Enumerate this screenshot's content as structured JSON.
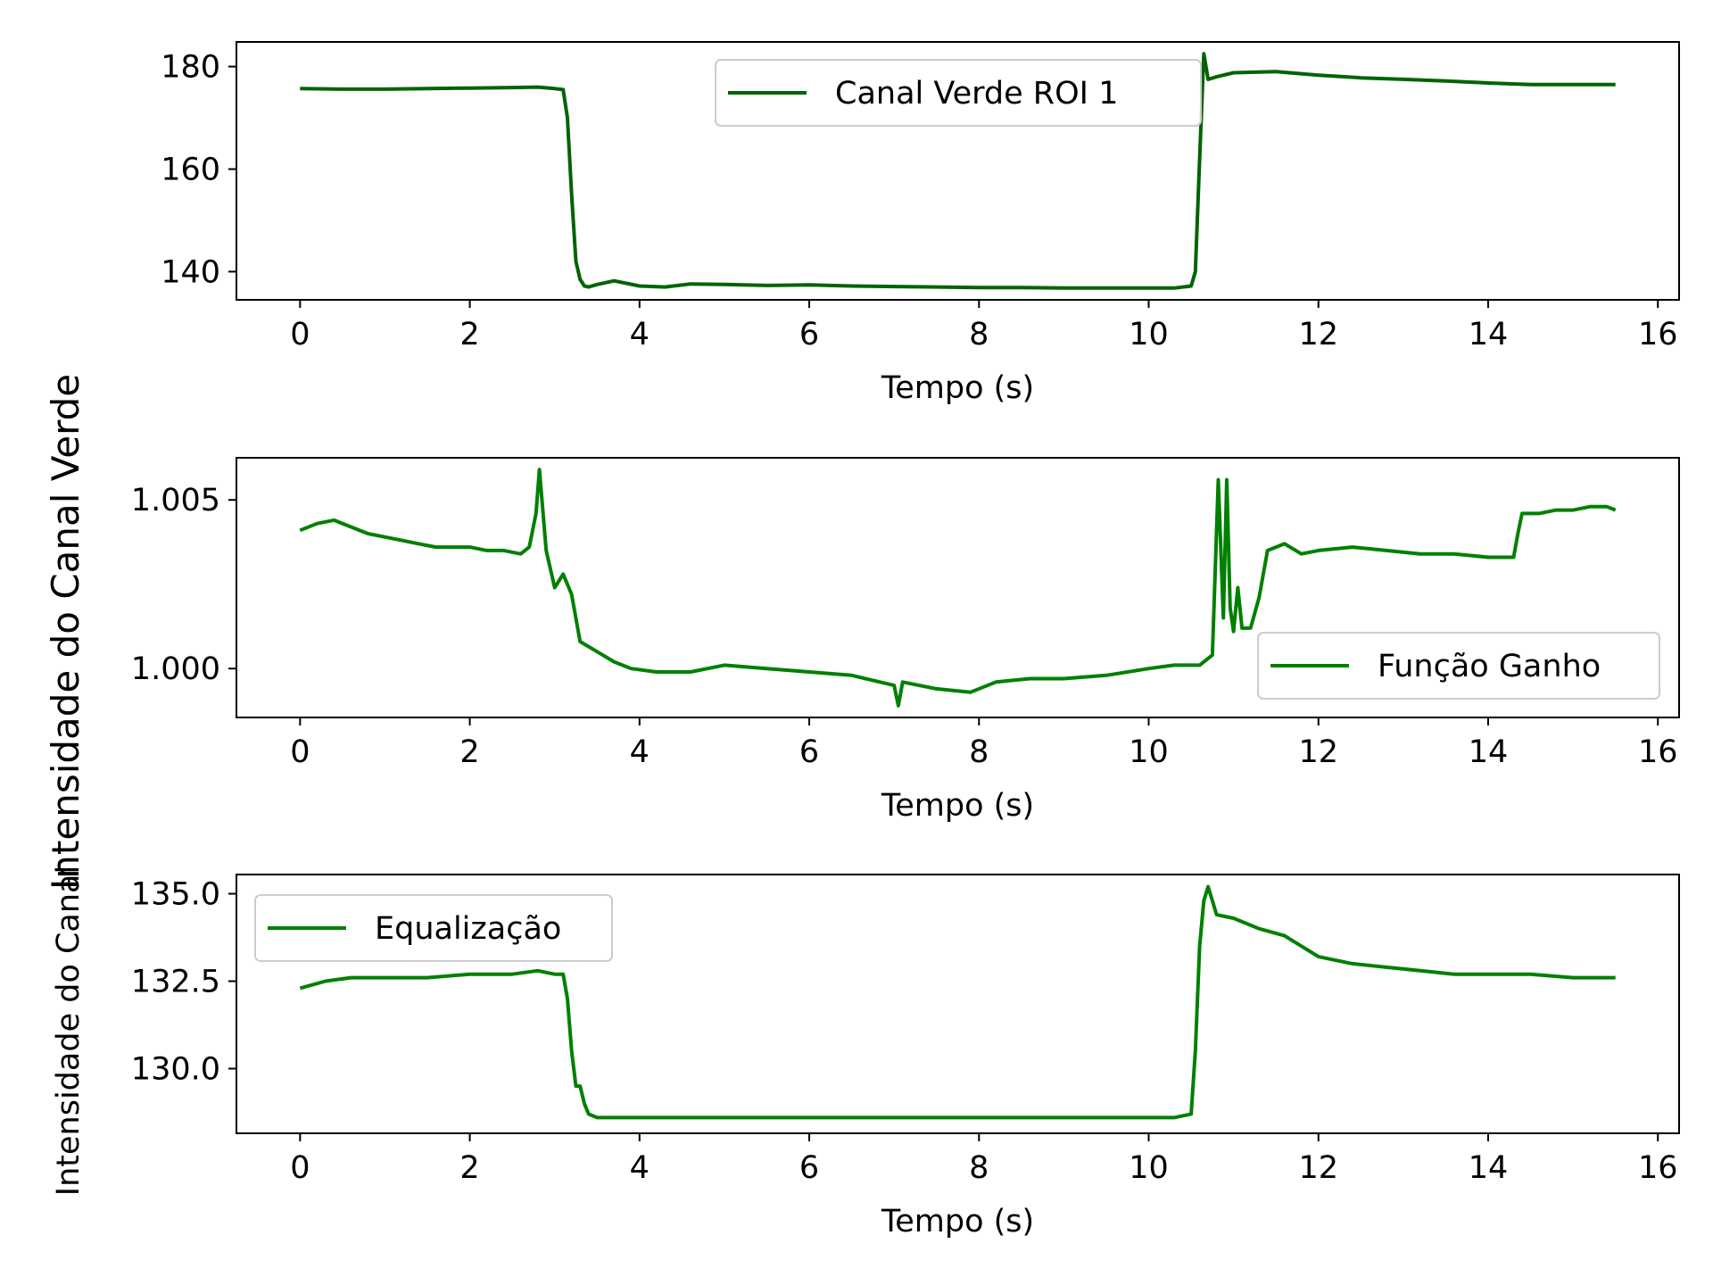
{
  "figure": {
    "supylabel": "Intensidade do Canal Verde",
    "line_color_dark": "#006400",
    "line_color": "#008000"
  },
  "chart_data": [
    {
      "type": "line",
      "title": "",
      "xlabel": "Tempo (s)",
      "ylabel": "",
      "xlim": [
        -0.75,
        16.25
      ],
      "ylim": [
        134.5,
        184.8
      ],
      "xticks": [
        0,
        2,
        4,
        6,
        8,
        10,
        12,
        14,
        16
      ],
      "xtick_labels": [
        "0",
        "2",
        "4",
        "6",
        "8",
        "10",
        "12",
        "14",
        "16"
      ],
      "yticks": [
        140,
        160,
        180
      ],
      "ytick_labels": [
        "140",
        "160",
        "180"
      ],
      "legend": {
        "position": "top-center",
        "entries": [
          "Canal Verde ROI 1"
        ]
      },
      "grid": false,
      "series": [
        {
          "name": "Canal Verde ROI 1",
          "color": "#006400",
          "x": [
            0,
            0.5,
            1,
            1.5,
            2,
            2.5,
            2.8,
            3.0,
            3.1,
            3.15,
            3.2,
            3.25,
            3.3,
            3.35,
            3.4,
            3.5,
            3.7,
            4.0,
            4.3,
            4.6,
            5.0,
            5.5,
            6.0,
            6.5,
            7.0,
            7.5,
            8.0,
            8.5,
            9.0,
            9.5,
            10.0,
            10.3,
            10.5,
            10.55,
            10.6,
            10.65,
            10.7,
            10.8,
            11.0,
            11.5,
            12.0,
            12.5,
            13.0,
            13.5,
            14.0,
            14.5,
            15.0,
            15.5
          ],
          "y": [
            175.7,
            175.6,
            175.6,
            175.7,
            175.8,
            175.9,
            176.0,
            175.7,
            175.5,
            170.0,
            155.0,
            142.0,
            138.5,
            137.2,
            137.0,
            137.5,
            138.2,
            137.2,
            137.0,
            137.6,
            137.5,
            137.3,
            137.4,
            137.2,
            137.1,
            137.0,
            136.9,
            136.9,
            136.8,
            136.8,
            136.8,
            136.8,
            137.2,
            140.0,
            162.0,
            182.5,
            177.5,
            178.0,
            178.8,
            179.0,
            178.3,
            177.8,
            177.5,
            177.2,
            176.8,
            176.5,
            176.5,
            176.5
          ]
        }
      ]
    },
    {
      "type": "line",
      "title": "",
      "xlabel": "Tempo (s)",
      "ylabel": "",
      "xlim": [
        -0.75,
        16.25
      ],
      "ylim": [
        0.99855,
        1.00625
      ],
      "xticks": [
        0,
        2,
        4,
        6,
        8,
        10,
        12,
        14,
        16
      ],
      "xtick_labels": [
        "0",
        "2",
        "4",
        "6",
        "8",
        "10",
        "12",
        "14",
        "16"
      ],
      "yticks": [
        1.0,
        1.005
      ],
      "ytick_labels": [
        "1.000",
        "1.005"
      ],
      "legend": {
        "position": "lower-right",
        "entries": [
          "Função Ganho"
        ]
      },
      "grid": false,
      "series": [
        {
          "name": "Função Ganho",
          "color": "#008000",
          "x": [
            0,
            0.2,
            0.4,
            0.6,
            0.8,
            1.0,
            1.2,
            1.4,
            1.6,
            1.8,
            2.0,
            2.2,
            2.4,
            2.6,
            2.7,
            2.78,
            2.82,
            2.9,
            3.0,
            3.1,
            3.2,
            3.3,
            3.5,
            3.7,
            3.9,
            4.2,
            4.6,
            5.0,
            5.5,
            6.0,
            6.5,
            7.0,
            7.05,
            7.1,
            7.5,
            7.9,
            8.2,
            8.6,
            9.0,
            9.5,
            10.0,
            10.3,
            10.6,
            10.75,
            10.82,
            10.88,
            10.92,
            10.96,
            11.0,
            11.05,
            11.1,
            11.2,
            11.3,
            11.4,
            11.6,
            11.8,
            12.0,
            12.4,
            12.8,
            13.2,
            13.6,
            14.0,
            14.3,
            14.35,
            14.4,
            14.6,
            14.8,
            15.0,
            15.2,
            15.4,
            15.5
          ],
          "y": [
            1.0041,
            1.0043,
            1.0044,
            1.0042,
            1.004,
            1.0039,
            1.0038,
            1.0037,
            1.0036,
            1.0036,
            1.0036,
            1.0035,
            1.0035,
            1.0034,
            1.0036,
            1.0046,
            1.0059,
            1.0035,
            1.0024,
            1.0028,
            1.0022,
            1.0008,
            1.0005,
            1.0002,
            1.0,
            0.9999,
            0.9999,
            1.0001,
            1.0,
            0.9999,
            0.9998,
            0.9995,
            0.9989,
            0.9996,
            0.9994,
            0.9993,
            0.9996,
            0.9997,
            0.9997,
            0.9998,
            1.0,
            1.0001,
            1.0001,
            1.0004,
            1.0056,
            1.0015,
            1.0056,
            1.0018,
            1.0011,
            1.0024,
            1.0012,
            1.0012,
            1.0021,
            1.0035,
            1.0037,
            1.0034,
            1.0035,
            1.0036,
            1.0035,
            1.0034,
            1.0034,
            1.0033,
            1.0033,
            1.004,
            1.0046,
            1.0046,
            1.0047,
            1.0047,
            1.0048,
            1.0048,
            1.0047
          ]
        }
      ]
    },
    {
      "type": "line",
      "title": "",
      "xlabel": "Tempo (s)",
      "ylabel": "Intensidade do Canal",
      "xlim": [
        -0.75,
        16.25
      ],
      "ylim": [
        128.15,
        135.55
      ],
      "xticks": [
        0,
        2,
        4,
        6,
        8,
        10,
        12,
        14,
        16
      ],
      "xtick_labels": [
        "0",
        "2",
        "4",
        "6",
        "8",
        "10",
        "12",
        "14",
        "16"
      ],
      "yticks": [
        130.0,
        132.5,
        135.0
      ],
      "ytick_labels": [
        "130.0",
        "132.5",
        "135.0"
      ],
      "legend": {
        "position": "top-left",
        "entries": [
          "Equalização"
        ]
      },
      "grid": false,
      "series": [
        {
          "name": "Equalização",
          "color": "#008000",
          "x": [
            0,
            0.3,
            0.6,
            1.0,
            1.5,
            2.0,
            2.5,
            2.8,
            3.0,
            3.1,
            3.15,
            3.2,
            3.25,
            3.3,
            3.35,
            3.4,
            3.5,
            3.8,
            4.2,
            5.0,
            6.0,
            7.0,
            8.0,
            9.0,
            10.0,
            10.3,
            10.5,
            10.55,
            10.6,
            10.65,
            10.7,
            10.75,
            10.8,
            11.0,
            11.3,
            11.6,
            11.8,
            12.0,
            12.4,
            12.8,
            13.2,
            13.6,
            14.0,
            14.5,
            15.0,
            15.5
          ],
          "y": [
            132.3,
            132.5,
            132.6,
            132.6,
            132.6,
            132.7,
            132.7,
            132.8,
            132.7,
            132.7,
            132.0,
            130.5,
            129.5,
            129.5,
            129.0,
            128.7,
            128.6,
            128.6,
            128.6,
            128.6,
            128.6,
            128.6,
            128.6,
            128.6,
            128.6,
            128.6,
            128.7,
            130.5,
            133.5,
            134.8,
            135.2,
            134.8,
            134.4,
            134.3,
            134.0,
            133.8,
            133.5,
            133.2,
            133.0,
            132.9,
            132.8,
            132.7,
            132.7,
            132.7,
            132.6,
            132.6
          ]
        }
      ]
    }
  ]
}
